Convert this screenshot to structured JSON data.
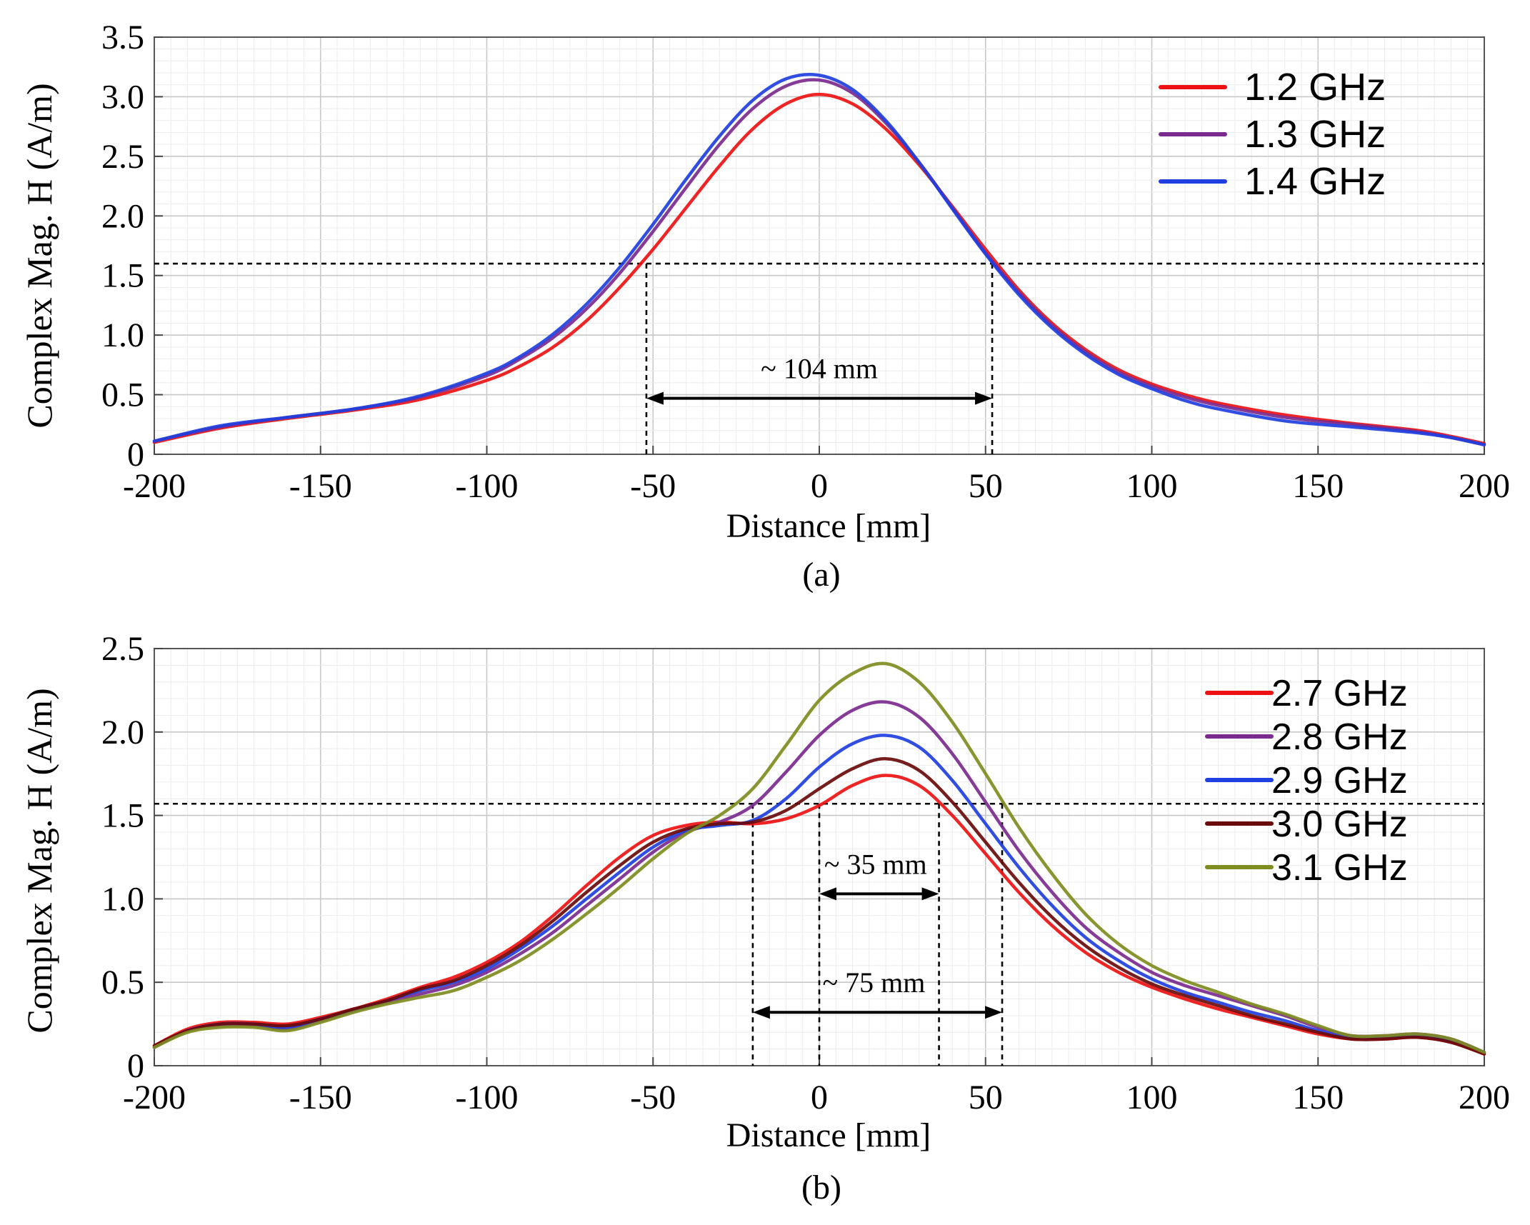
{
  "chart_data": [
    {
      "type": "line",
      "panel": "a",
      "caption": "(a)",
      "xlabel": "Distance [mm]",
      "ylabel": "Complex Mag. H (A/m)",
      "xlim": [
        -200,
        200
      ],
      "ylim": [
        0,
        3.5
      ],
      "xticks": [
        -200,
        -150,
        -100,
        -50,
        0,
        50,
        100,
        150,
        200
      ],
      "yticks": [
        0,
        0.5,
        1.0,
        1.5,
        2.0,
        2.5,
        3.0,
        3.5
      ],
      "ytick_labels": [
        "0",
        "0.5",
        "1.0",
        "1.5",
        "2.0",
        "2.5",
        "3.0",
        "3.5"
      ],
      "grid": true,
      "legend_position": "top-right",
      "threshold_y": 1.6,
      "markers_x": [
        -52,
        52
      ],
      "width_annotation": {
        "label": "~ 104 mm",
        "x1": -52,
        "x2": 52,
        "y": 0.47
      },
      "x": [
        -200,
        -180,
        -160,
        -140,
        -120,
        -100,
        -90,
        -80,
        -70,
        -60,
        -50,
        -40,
        -30,
        -20,
        -10,
        0,
        10,
        20,
        30,
        40,
        50,
        60,
        70,
        80,
        90,
        100,
        110,
        120,
        140,
        160,
        180,
        190,
        200
      ],
      "series": [
        {
          "name": "1.2 GHz",
          "color": "#ee1111",
          "values": [
            0.1,
            0.22,
            0.3,
            0.37,
            0.46,
            0.62,
            0.74,
            0.9,
            1.12,
            1.4,
            1.72,
            2.07,
            2.42,
            2.73,
            2.94,
            3.02,
            2.94,
            2.73,
            2.43,
            2.08,
            1.72,
            1.38,
            1.1,
            0.88,
            0.71,
            0.59,
            0.5,
            0.43,
            0.33,
            0.26,
            0.2,
            0.15,
            0.09
          ]
        },
        {
          "name": "1.3 GHz",
          "color": "#7b2a8e",
          "values": [
            0.11,
            0.23,
            0.31,
            0.38,
            0.48,
            0.66,
            0.8,
            0.98,
            1.22,
            1.52,
            1.87,
            2.24,
            2.6,
            2.9,
            3.09,
            3.14,
            3.03,
            2.78,
            2.45,
            2.07,
            1.69,
            1.36,
            1.08,
            0.86,
            0.69,
            0.57,
            0.48,
            0.41,
            0.31,
            0.25,
            0.19,
            0.14,
            0.08
          ]
        },
        {
          "name": "1.4 GHz",
          "color": "#1f3fe0",
          "values": [
            0.11,
            0.24,
            0.31,
            0.38,
            0.49,
            0.68,
            0.82,
            1.01,
            1.26,
            1.57,
            1.93,
            2.31,
            2.67,
            2.97,
            3.15,
            3.18,
            3.06,
            2.8,
            2.45,
            2.06,
            1.68,
            1.34,
            1.06,
            0.84,
            0.67,
            0.55,
            0.45,
            0.38,
            0.28,
            0.23,
            0.18,
            0.14,
            0.08
          ]
        }
      ]
    },
    {
      "type": "line",
      "panel": "b",
      "caption": "(b)",
      "xlabel": "Distance [mm]",
      "ylabel": "Complex Mag. H (A/m)",
      "xlim": [
        -200,
        200
      ],
      "ylim": [
        0,
        2.5
      ],
      "xticks": [
        -200,
        -150,
        -100,
        -50,
        0,
        50,
        100,
        150,
        200
      ],
      "yticks": [
        0,
        0.5,
        1.0,
        1.5,
        2.0,
        2.5
      ],
      "ytick_labels": [
        "0",
        "0.5",
        "1.0",
        "1.5",
        "2.0",
        "2.5"
      ],
      "grid": true,
      "legend_position": "top-right",
      "threshold_y": 1.57,
      "markers_x": [
        -20,
        0,
        36,
        55
      ],
      "width_annotations": [
        {
          "label": "~ 35 mm",
          "x1": 0,
          "x2": 36,
          "y": 1.03
        },
        {
          "label": "~ 75 mm",
          "x1": -20,
          "x2": 55,
          "y": 0.32
        }
      ],
      "x": [
        -200,
        -190,
        -180,
        -170,
        -160,
        -150,
        -140,
        -130,
        -120,
        -110,
        -100,
        -90,
        -80,
        -70,
        -60,
        -50,
        -40,
        -30,
        -20,
        -10,
        0,
        10,
        20,
        30,
        40,
        50,
        60,
        70,
        80,
        90,
        100,
        110,
        120,
        130,
        140,
        150,
        160,
        170,
        180,
        190,
        200
      ],
      "series": [
        {
          "name": "2.7 GHz",
          "color": "#ee1111",
          "values": [
            0.12,
            0.22,
            0.26,
            0.26,
            0.25,
            0.29,
            0.34,
            0.4,
            0.47,
            0.53,
            0.62,
            0.74,
            0.9,
            1.08,
            1.25,
            1.38,
            1.44,
            1.46,
            1.45,
            1.48,
            1.56,
            1.68,
            1.74,
            1.68,
            1.5,
            1.27,
            1.04,
            0.84,
            0.68,
            0.56,
            0.47,
            0.4,
            0.34,
            0.29,
            0.24,
            0.19,
            0.16,
            0.16,
            0.17,
            0.14,
            0.07
          ]
        },
        {
          "name": "2.8 GHz",
          "color": "#7b2a8e",
          "values": [
            0.11,
            0.21,
            0.24,
            0.24,
            0.22,
            0.27,
            0.33,
            0.38,
            0.43,
            0.48,
            0.56,
            0.67,
            0.8,
            0.96,
            1.12,
            1.28,
            1.4,
            1.46,
            1.56,
            1.76,
            1.98,
            2.13,
            2.18,
            2.09,
            1.87,
            1.58,
            1.29,
            1.04,
            0.83,
            0.68,
            0.56,
            0.48,
            0.42,
            0.36,
            0.3,
            0.23,
            0.18,
            0.18,
            0.19,
            0.16,
            0.08
          ]
        },
        {
          "name": "2.9 GHz",
          "color": "#1f3fe0",
          "values": [
            0.11,
            0.21,
            0.25,
            0.25,
            0.23,
            0.28,
            0.33,
            0.39,
            0.45,
            0.5,
            0.58,
            0.7,
            0.84,
            1.0,
            1.16,
            1.31,
            1.41,
            1.44,
            1.47,
            1.6,
            1.79,
            1.93,
            1.98,
            1.91,
            1.71,
            1.45,
            1.19,
            0.96,
            0.77,
            0.63,
            0.52,
            0.44,
            0.38,
            0.32,
            0.27,
            0.21,
            0.17,
            0.17,
            0.18,
            0.15,
            0.08
          ]
        },
        {
          "name": "3.0 GHz",
          "color": "#6a0a0a",
          "values": [
            0.12,
            0.21,
            0.25,
            0.25,
            0.24,
            0.28,
            0.34,
            0.39,
            0.46,
            0.51,
            0.6,
            0.72,
            0.87,
            1.04,
            1.2,
            1.34,
            1.42,
            1.45,
            1.46,
            1.53,
            1.66,
            1.78,
            1.84,
            1.77,
            1.58,
            1.34,
            1.1,
            0.89,
            0.72,
            0.59,
            0.49,
            0.42,
            0.36,
            0.3,
            0.25,
            0.2,
            0.16,
            0.16,
            0.17,
            0.14,
            0.07
          ]
        },
        {
          "name": "3.1 GHz",
          "color": "#7f8c1e",
          "values": [
            0.11,
            0.2,
            0.23,
            0.23,
            0.21,
            0.26,
            0.32,
            0.37,
            0.41,
            0.45,
            0.53,
            0.63,
            0.76,
            0.91,
            1.07,
            1.24,
            1.39,
            1.5,
            1.66,
            1.92,
            2.19,
            2.35,
            2.41,
            2.3,
            2.06,
            1.75,
            1.43,
            1.15,
            0.91,
            0.73,
            0.6,
            0.51,
            0.44,
            0.37,
            0.31,
            0.24,
            0.18,
            0.18,
            0.19,
            0.16,
            0.08
          ]
        }
      ]
    }
  ]
}
